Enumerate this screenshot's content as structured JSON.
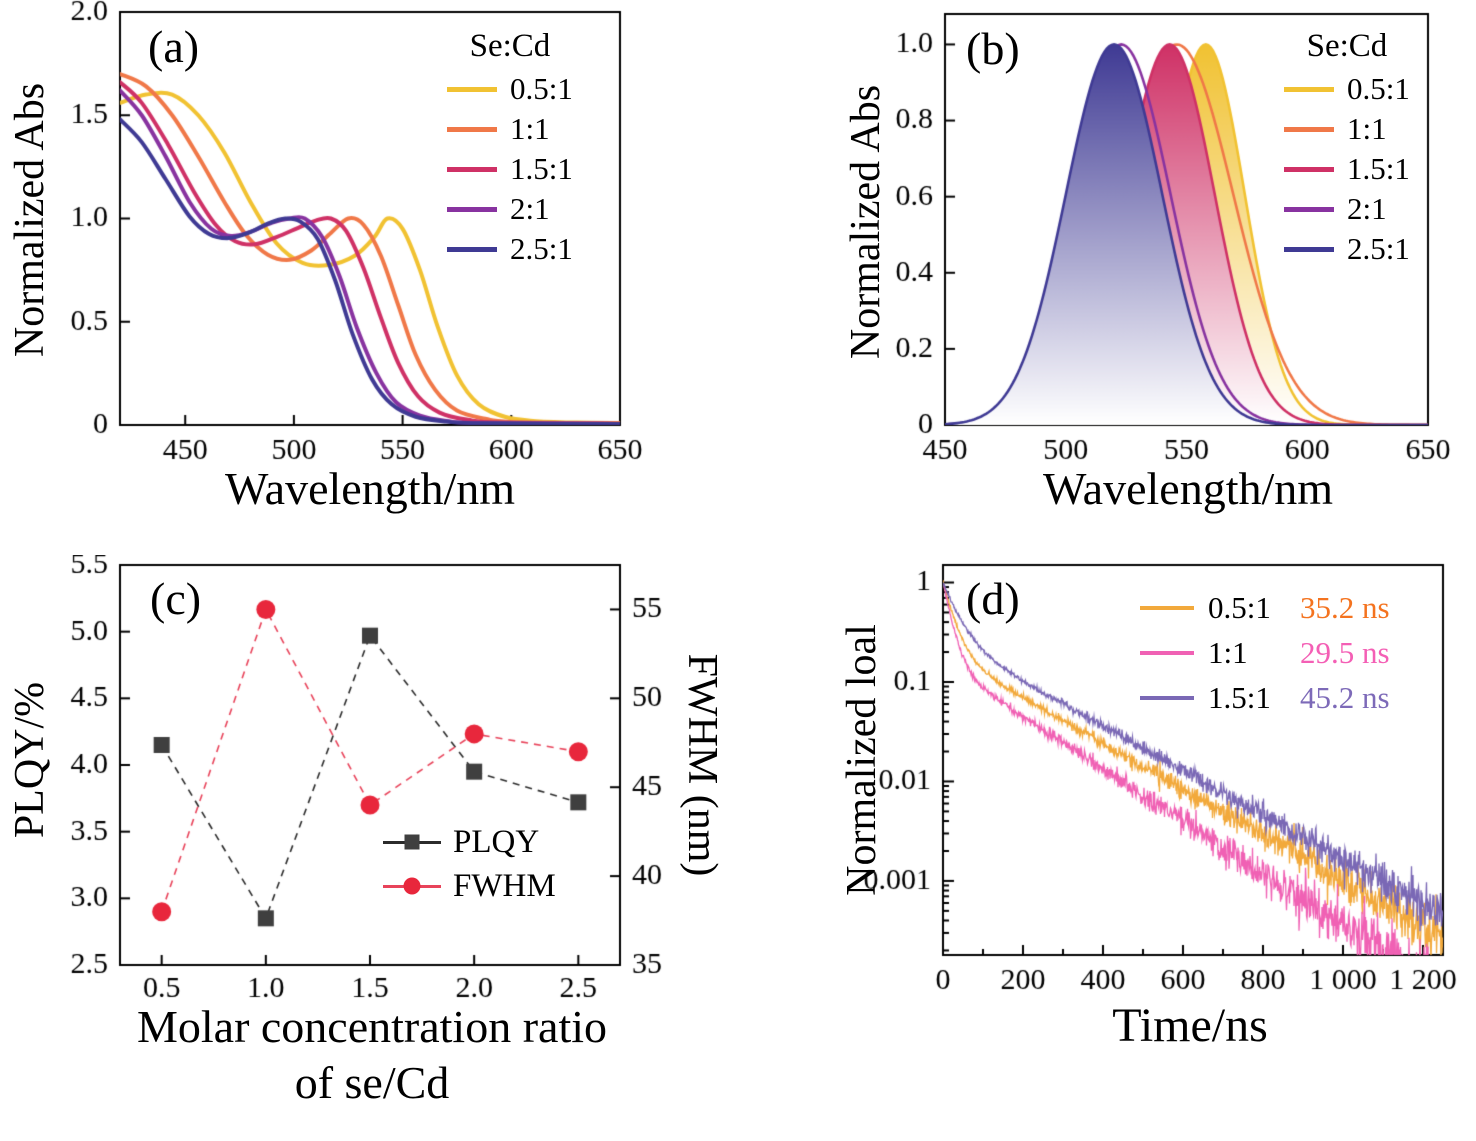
{
  "colors": {
    "axis": "#000000",
    "background": "#ffffff"
  },
  "chart_data": [
    {
      "id": "a",
      "type": "line",
      "panel_label": "(a)",
      "xlabel": "Wavelength/nm",
      "ylabel": "Normalized Abs",
      "xlim": [
        420,
        650
      ],
      "ylim": [
        0,
        2.0
      ],
      "x_ticks": [
        450,
        500,
        550,
        600,
        650
      ],
      "x_tick_labels": [
        "450",
        "500",
        "550",
        "600",
        "650"
      ],
      "y_ticks": [
        0,
        0.5,
        1.0,
        1.5,
        2.0
      ],
      "y_tick_labels": [
        "0",
        "0.5",
        "1.0",
        "1.5",
        "2.0"
      ],
      "legend_title": "Se:Cd",
      "series": [
        {
          "name": "0.5:1",
          "color": "#f1c232",
          "points": [
            [
              420,
              1.56
            ],
            [
              432,
              1.6
            ],
            [
              444,
              1.6
            ],
            [
              456,
              1.5
            ],
            [
              468,
              1.32
            ],
            [
              480,
              1.08
            ],
            [
              492,
              0.88
            ],
            [
              504,
              0.785
            ],
            [
              516,
              0.775
            ],
            [
              528,
              0.82
            ],
            [
              537,
              0.91
            ],
            [
              543,
              1.0
            ],
            [
              550,
              0.95
            ],
            [
              558,
              0.75
            ],
            [
              566,
              0.48
            ],
            [
              575,
              0.24
            ],
            [
              585,
              0.1
            ],
            [
              597,
              0.04
            ],
            [
              610,
              0.02
            ],
            [
              630,
              0.012
            ],
            [
              650,
              0.01
            ]
          ]
        },
        {
          "name": "1:1",
          "color": "#f07848",
          "points": [
            [
              420,
              1.7
            ],
            [
              432,
              1.64
            ],
            [
              444,
              1.5
            ],
            [
              456,
              1.3
            ],
            [
              468,
              1.08
            ],
            [
              478,
              0.92
            ],
            [
              488,
              0.825
            ],
            [
              498,
              0.8
            ],
            [
              508,
              0.845
            ],
            [
              517,
              0.93
            ],
            [
              525,
              1.0
            ],
            [
              532,
              0.97
            ],
            [
              540,
              0.82
            ],
            [
              548,
              0.58
            ],
            [
              556,
              0.34
            ],
            [
              565,
              0.17
            ],
            [
              575,
              0.07
            ],
            [
              588,
              0.03
            ],
            [
              600,
              0.015
            ],
            [
              650,
              0.008
            ]
          ]
        },
        {
          "name": "1.5:1",
          "color": "#cf3166",
          "points": [
            [
              420,
              1.66
            ],
            [
              430,
              1.56
            ],
            [
              442,
              1.36
            ],
            [
              454,
              1.13
            ],
            [
              464,
              0.97
            ],
            [
              473,
              0.89
            ],
            [
              482,
              0.875
            ],
            [
              492,
              0.91
            ],
            [
              502,
              0.955
            ],
            [
              510,
              0.99
            ],
            [
              517,
              1.0
            ],
            [
              524,
              0.94
            ],
            [
              532,
              0.76
            ],
            [
              540,
              0.52
            ],
            [
              548,
              0.3
            ],
            [
              557,
              0.14
            ],
            [
              567,
              0.06
            ],
            [
              580,
              0.025
            ],
            [
              595,
              0.012
            ],
            [
              650,
              0.006
            ]
          ]
        },
        {
          "name": "2:1",
          "color": "#8833a0",
          "points": [
            [
              420,
              1.62
            ],
            [
              430,
              1.5
            ],
            [
              441,
              1.3
            ],
            [
              452,
              1.08
            ],
            [
              462,
              0.95
            ],
            [
              471,
              0.915
            ],
            [
              480,
              0.935
            ],
            [
              490,
              0.98
            ],
            [
              498,
              1.0
            ],
            [
              505,
              1.0
            ],
            [
              513,
              0.91
            ],
            [
              521,
              0.72
            ],
            [
              529,
              0.47
            ],
            [
              538,
              0.25
            ],
            [
              547,
              0.11
            ],
            [
              558,
              0.045
            ],
            [
              570,
              0.02
            ],
            [
              585,
              0.01
            ],
            [
              650,
              0.005
            ]
          ]
        },
        {
          "name": "2.5:1",
          "color": "#3f3a94",
          "points": [
            [
              420,
              1.48
            ],
            [
              430,
              1.37
            ],
            [
              441,
              1.19
            ],
            [
              452,
              1.01
            ],
            [
              461,
              0.925
            ],
            [
              470,
              0.905
            ],
            [
              479,
              0.93
            ],
            [
              488,
              0.975
            ],
            [
              496,
              1.0
            ],
            [
              503,
              0.985
            ],
            [
              511,
              0.9
            ],
            [
              519,
              0.7
            ],
            [
              527,
              0.44
            ],
            [
              536,
              0.22
            ],
            [
              545,
              0.1
            ],
            [
              556,
              0.04
            ],
            [
              570,
              0.017
            ],
            [
              585,
              0.009
            ],
            [
              650,
              0.005
            ]
          ]
        }
      ]
    },
    {
      "id": "b",
      "type": "area",
      "panel_label": "(b)",
      "xlabel": "Wavelength/nm",
      "ylabel": "Normalized Abs",
      "xlim": [
        450,
        650
      ],
      "ylim": [
        0,
        1.08
      ],
      "x_ticks": [
        450,
        500,
        550,
        600,
        650
      ],
      "x_tick_labels": [
        "450",
        "500",
        "550",
        "600",
        "650"
      ],
      "y_ticks": [
        0,
        0.2,
        0.4,
        0.6,
        0.8,
        1.0
      ],
      "y_tick_labels": [
        "0",
        "0.2",
        "0.4",
        "0.6",
        "0.8",
        "1.0"
      ],
      "legend_title": "Se:Cd",
      "series": [
        {
          "name": "0.5:1",
          "color": "#f1c232",
          "peak_nm": 558,
          "fwhm_nm": 38,
          "amplitude": 1.0,
          "fill": true
        },
        {
          "name": "1:1",
          "color": "#f07848",
          "peak_nm": 546,
          "fwhm_nm": 55,
          "amplitude": 1.0,
          "fill": false
        },
        {
          "name": "1.5:1",
          "color": "#cf3166",
          "peak_nm": 543,
          "fwhm_nm": 44,
          "amplitude": 1.0,
          "fill": true
        },
        {
          "name": "2:1",
          "color": "#8833a0",
          "peak_nm": 523,
          "fwhm_nm": 48,
          "amplitude": 1.0,
          "fill": false
        },
        {
          "name": "2.5:1",
          "color": "#3f3a94",
          "peak_nm": 520,
          "fwhm_nm": 47,
          "amplitude": 1.0,
          "fill": true
        }
      ]
    },
    {
      "id": "c",
      "type": "scatter",
      "panel_label": "(c)",
      "xlabel_line1": "Molar concentration ratio",
      "xlabel_line2": "of se/Cd",
      "ylabel_left": "PLQY/%",
      "ylabel_right": "FWHM (nm)",
      "x": [
        0.5,
        1.0,
        1.5,
        2.0,
        2.5
      ],
      "xlim": [
        0.3,
        2.7
      ],
      "x_tick_labels": [
        "0.5",
        "1.0",
        "1.5",
        "2.0",
        "2.5"
      ],
      "left_ylim": [
        2.5,
        5.5
      ],
      "left_y_ticks": [
        2.5,
        3.0,
        3.5,
        4.0,
        4.5,
        5.0,
        5.5
      ],
      "left_y_tick_labels": [
        "2.5",
        "3.0",
        "3.5",
        "4.0",
        "4.5",
        "5.0",
        "5.5"
      ],
      "right_ylim": [
        35,
        57.5
      ],
      "right_y_ticks": [
        35,
        40,
        45,
        50,
        55
      ],
      "right_y_tick_labels": [
        "35",
        "40",
        "45",
        "50",
        "55"
      ],
      "series": [
        {
          "name": "PLQY",
          "axis": "left",
          "marker": "square",
          "color": "#3f3f3f",
          "line_color": "#2b2b2b",
          "values": [
            4.15,
            2.85,
            4.97,
            3.95,
            3.72
          ]
        },
        {
          "name": "FWHM",
          "axis": "right",
          "marker": "circle",
          "color": "#e8273c",
          "line_color": "#e8435a",
          "values": [
            38,
            55,
            44,
            48,
            47
          ]
        }
      ]
    },
    {
      "id": "d",
      "type": "line",
      "panel_label": "(d)",
      "xlabel": "Time/ns",
      "ylabel": "Normalized loal",
      "xlim": [
        0,
        1250
      ],
      "x_ticks": [
        0,
        200,
        400,
        600,
        800,
        1000,
        1200
      ],
      "x_tick_labels": [
        "0",
        "200",
        "400",
        "600",
        "800",
        "1 000",
        "1 200"
      ],
      "y_scale": "log",
      "ylog_top": 1.5,
      "ylog_bottom": 0.00018,
      "y_ticks": [
        1,
        0.1,
        0.01,
        0.001
      ],
      "y_tick_labels": [
        "1",
        "0.1",
        "0.01",
        "0.001"
      ],
      "series": [
        {
          "name": "0.5:1",
          "lifetime": "35.2 ns",
          "color": "#f2a93b",
          "lifetime_color": "#f4731f",
          "decay": {
            "a1": 0.8,
            "t1": 25,
            "a2": 0.2,
            "t2": 190,
            "seed": 7
          }
        },
        {
          "name": "1:1",
          "lifetime": "29.5 ns",
          "color": "#f061b4",
          "lifetime_color": "#f45fb5",
          "decay": {
            "a1": 0.85,
            "t1": 20,
            "a2": 0.15,
            "t2": 165,
            "seed": 13
          }
        },
        {
          "name": "1.5:1",
          "lifetime": "45.2 ns",
          "color": "#7a68b5",
          "lifetime_color": "#7d6ab8",
          "decay": {
            "a1": 0.72,
            "t1": 35,
            "a2": 0.28,
            "t2": 195,
            "seed": 21
          }
        }
      ]
    }
  ]
}
